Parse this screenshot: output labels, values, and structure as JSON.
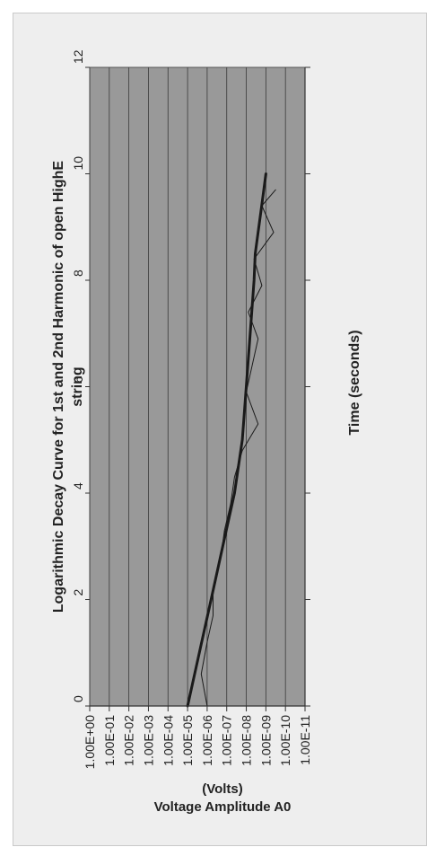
{
  "chart_data": {
    "type": "line",
    "title": "Logarithmic Decay Curve for 1st and 2nd Harmonic of open HighE string",
    "title_lines": [
      "Logarithmic Decay Curve for 1st and 2nd Harmonic of open HighE",
      "string"
    ],
    "xlabel": "Time (seconds)",
    "ylabel": "Voltage Amplitude  A0",
    "ylabel_unit": "(Volts)",
    "scale": {
      "x": "linear",
      "y": "log"
    },
    "xlim": [
      0,
      12
    ],
    "ylim": [
      1e-11,
      1
    ],
    "x_ticks": [
      0,
      2,
      4,
      6,
      8,
      10,
      12
    ],
    "x_tick_labels": [
      "0",
      "2",
      "4",
      "6",
      "8",
      "10",
      "12"
    ],
    "y_ticks": [
      1,
      0.1,
      0.01,
      0.001,
      0.0001,
      1e-05,
      1e-06,
      1e-07,
      1e-08,
      1e-09,
      1e-10,
      1e-11
    ],
    "y_tick_labels": [
      "1.00E+00",
      "1.00E-01",
      "1.00E-02",
      "1.00E-03",
      "1.00E-04",
      "1.00E-05",
      "1.00E-06",
      "1.00E-07",
      "1.00E-08",
      "1.00E-09",
      "1.00E-10",
      "1.00E-11"
    ],
    "grid": {
      "horizontal": true,
      "vertical": false
    },
    "plot_background": "#999999",
    "series": [
      {
        "style": "thick",
        "color": "#1a1a1a",
        "x": [
          0,
          1,
          2,
          3,
          4,
          5,
          6,
          7,
          8,
          8.5,
          9.5,
          10
        ],
        "y": [
          1e-05,
          2.5e-06,
          6.3e-07,
          1.6e-07,
          4e-08,
          1.6e-08,
          1e-08,
          6.3e-09,
          4e-09,
          3.5e-09,
          1.5e-09,
          1e-09
        ]
      },
      {
        "style": "thin",
        "color": "#1a1a1a",
        "x": [
          0,
          0.6,
          1.2,
          1.7,
          2.2,
          2.8,
          3.3,
          3.8,
          4.3,
          4.8,
          5.3,
          5.9,
          6.4,
          6.9,
          7.4,
          7.9,
          8.4,
          8.9,
          9.4,
          9.7
        ],
        "y": [
          1e-06,
          2e-06,
          1e-06,
          5e-07,
          5e-07,
          2e-07,
          1.3e-07,
          6.3e-08,
          4e-08,
          1.6e-08,
          2.5e-09,
          1e-08,
          5e-09,
          2.5e-09,
          7.9e-09,
          1.6e-09,
          4e-09,
          4e-10,
          1.6e-09,
          3.2e-10
        ]
      }
    ]
  }
}
